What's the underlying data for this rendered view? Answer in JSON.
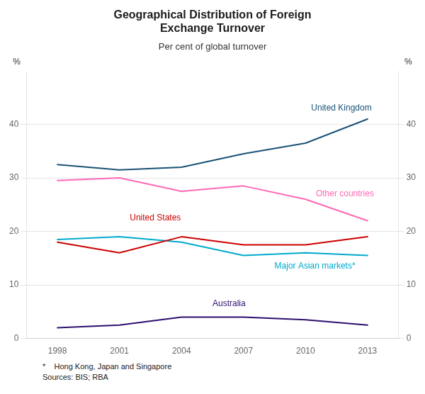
{
  "chart_data": {
    "type": "line",
    "title": "Geographical Distribution of Foreign\nExchange Turnover",
    "subtitle": "Per cent of global turnover",
    "x": [
      1998,
      2001,
      2004,
      2007,
      2010,
      2013
    ],
    "series": [
      {
        "name": "United Kingdom",
        "color": "#1a5276",
        "values": [
          32.5,
          31.5,
          32.0,
          34.5,
          36.5,
          41.0
        ]
      },
      {
        "name": "Other countries",
        "color": "#ff69b4",
        "values": [
          29.5,
          30.0,
          27.5,
          28.5,
          26.0,
          22.0
        ]
      },
      {
        "name": "United States",
        "color": "#cc0000",
        "values": [
          18.0,
          16.0,
          19.0,
          17.5,
          17.5,
          19.0
        ]
      },
      {
        "name": "Major Asian markets*",
        "color": "#00aacc",
        "values": [
          18.5,
          19.0,
          18.0,
          15.5,
          16.0,
          15.5
        ]
      },
      {
        "name": "Australia",
        "color": "#2e0f6e",
        "values": [
          2.0,
          2.5,
          4.0,
          4.0,
          3.5,
          2.5
        ]
      }
    ],
    "xlim": [
      1996.5,
      2014.5
    ],
    "xticks": [
      1998,
      2001,
      2004,
      2007,
      2010,
      2013
    ],
    "ylim": [
      0,
      50
    ],
    "yticks": [
      0,
      10,
      20,
      30,
      40
    ],
    "y2lim": [
      0,
      50
    ],
    "y2ticks": [
      0,
      10,
      20,
      30,
      40
    ],
    "ylabel": "%",
    "y2label": "%",
    "grid": "y",
    "annotations": [
      {
        "text": "United Kingdom",
        "x": 2013.2,
        "y": 43.0
      },
      {
        "text": "Other countries",
        "x": 2010.5,
        "y": 27.0
      },
      {
        "text": "United States",
        "x": 2001.5,
        "y": 22.5
      },
      {
        "text": "Major Asian markets*",
        "x": 2008.5,
        "y": 13.5
      },
      {
        "text": "Australia",
        "x": 2005.5,
        "y": 6.5
      }
    ],
    "footnotes": [
      "*    Hong Kong, Japan and Singapore",
      "Sources: BIS; RBA"
    ]
  }
}
